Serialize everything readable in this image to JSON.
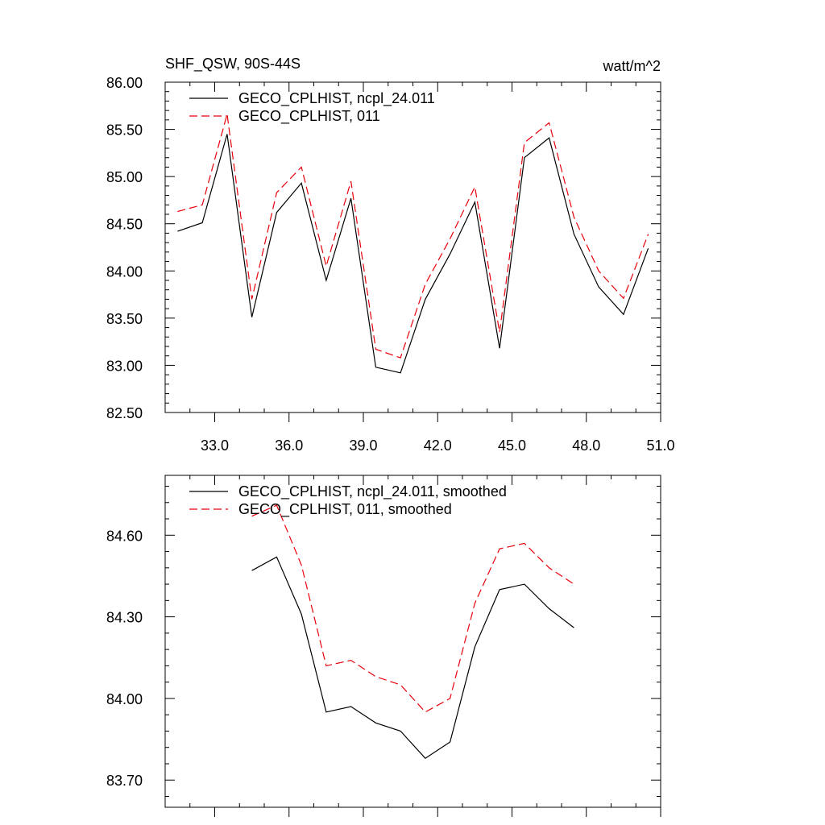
{
  "chart_data": [
    {
      "type": "line",
      "title": "SHF_QSW, 90S-44S",
      "units": "watt/m^2",
      "xlabel": "",
      "ylabel": "",
      "xlim": [
        31,
        51
      ],
      "ylim": [
        82.5,
        86.0
      ],
      "x_ticks": [
        33,
        36,
        39,
        42,
        45,
        48,
        51
      ],
      "x_tick_labels": [
        "33.0",
        "36.0",
        "39.0",
        "42.0",
        "45.0",
        "48.0",
        "51.0"
      ],
      "y_ticks": [
        82.5,
        83.0,
        83.5,
        84.0,
        84.5,
        85.0,
        85.5,
        86.0
      ],
      "y_tick_labels": [
        "82.50",
        "83.00",
        "83.50",
        "84.00",
        "84.50",
        "85.00",
        "85.50",
        "86.00"
      ],
      "grid": false,
      "legend_position": "top-left",
      "x": [
        31.5,
        32.5,
        33.5,
        34.5,
        35.5,
        36.5,
        37.5,
        38.5,
        39.5,
        40.5,
        41.5,
        42.5,
        43.5,
        44.5,
        45.5,
        46.5,
        47.5,
        48.5,
        49.5,
        50.5
      ],
      "series": [
        {
          "name": "GECO_CPLHIST, ncpl_24.011",
          "color": "#000000",
          "dash": "solid",
          "values": [
            84.42,
            84.51,
            85.45,
            83.51,
            84.62,
            84.93,
            83.9,
            84.77,
            82.98,
            82.92,
            83.7,
            84.18,
            84.73,
            83.18,
            85.2,
            85.41,
            84.39,
            83.83,
            83.54,
            84.24
          ]
        },
        {
          "name": "GECO_CPLHIST, 011",
          "color": "#e8000b",
          "dash": "dashed",
          "values": [
            84.63,
            84.7,
            85.66,
            83.7,
            84.83,
            85.1,
            84.05,
            84.95,
            83.17,
            83.08,
            83.86,
            84.34,
            84.89,
            83.35,
            85.36,
            85.57,
            84.57,
            84.0,
            83.71,
            84.39
          ]
        }
      ]
    },
    {
      "type": "line",
      "title": "",
      "xlabel": "",
      "ylabel": "",
      "xlim": [
        31,
        51
      ],
      "ylim": [
        83.6,
        84.82
      ],
      "x_ticks": [
        33,
        36,
        39,
        42,
        45,
        48,
        51
      ],
      "x_tick_labels": [],
      "y_ticks": [
        83.7,
        84.0,
        84.3,
        84.6
      ],
      "y_tick_labels": [
        "83.70",
        "84.00",
        "84.30",
        "84.60"
      ],
      "grid": false,
      "legend_position": "top-left",
      "x": [
        34.5,
        35.5,
        36.5,
        37.5,
        38.5,
        39.5,
        40.5,
        41.5,
        42.5,
        43.5,
        44.5,
        45.5,
        46.5,
        47.5
      ],
      "series": [
        {
          "name": "GECO_CPLHIST, ncpl_24.011, smoothed",
          "color": "#000000",
          "dash": "solid",
          "values": [
            84.47,
            84.52,
            84.31,
            83.95,
            83.97,
            83.91,
            83.88,
            83.78,
            83.84,
            84.19,
            84.4,
            84.42,
            84.33,
            84.26
          ]
        },
        {
          "name": "GECO_CPLHIST, 011, smoothed",
          "color": "#e8000b",
          "dash": "dashed",
          "values": [
            84.67,
            84.71,
            84.49,
            84.12,
            84.14,
            84.08,
            84.05,
            83.95,
            84.0,
            84.35,
            84.55,
            84.57,
            84.48,
            84.42
          ]
        }
      ]
    }
  ]
}
